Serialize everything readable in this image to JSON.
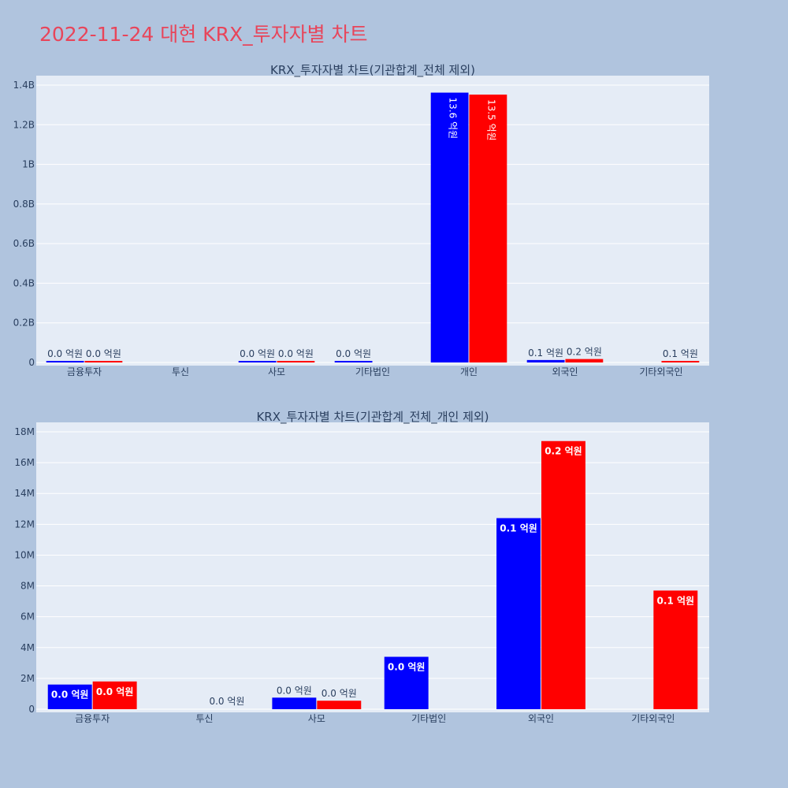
{
  "page_title": "2022-11-24 대현 KRX_투자자별 차트",
  "colors": {
    "buy": "#0000ff",
    "sell": "#ff0000",
    "title": "#e8455a",
    "page_bg": "#b0c4de",
    "plot_bg": "#e5ecf6"
  },
  "chart_data": [
    {
      "type": "bar",
      "title": "KRX_투자자별 차트(기관합계_전체 제외)",
      "categories": [
        "금융투자",
        "투신",
        "사모",
        "기타법인",
        "개인",
        "외국인",
        "기타외국인"
      ],
      "series": [
        {
          "color": "#0000ff",
          "values": [
            1600000,
            0,
            750000,
            3400000,
            1362000000,
            12400000,
            0
          ],
          "labels": [
            "0.0 억원",
            "",
            "0.0 억원",
            "0.0 억원",
            "13.6 억원",
            "0.1 억원",
            ""
          ]
        },
        {
          "color": "#ff0000",
          "values": [
            1800000,
            0,
            550000,
            0,
            1352000000,
            17400000,
            7700000
          ],
          "labels": [
            "0.0 억원",
            "",
            "0.0 억원",
            "",
            "13.5 억원",
            "0.2 억원",
            "0.1 억원"
          ]
        }
      ],
      "ylim": [
        0,
        1400000000
      ],
      "yticks": [
        0,
        200000000,
        400000000,
        600000000,
        800000000,
        1000000000,
        1200000000,
        1400000000
      ],
      "yticklabels": [
        "0",
        "0.2B",
        "0.4B",
        "0.6B",
        "0.8B",
        "1B",
        "1.2B",
        "1.4B"
      ],
      "grid": true
    },
    {
      "type": "bar",
      "title": "KRX_투자자별 차트(기관합계_전체_개인 제외)",
      "categories": [
        "금융투자",
        "투신",
        "사모",
        "기타법인",
        "외국인",
        "기타외국인"
      ],
      "series": [
        {
          "color": "#0000ff",
          "values": [
            1600000,
            0,
            750000,
            3400000,
            12400000,
            0
          ],
          "labels": [
            "0.0 억원",
            "",
            "0.0 억원",
            "0.0 억원",
            "0.1 억원",
            ""
          ]
        },
        {
          "color": "#ff0000",
          "values": [
            1800000,
            0,
            550000,
            0,
            17400000,
            7700000
          ],
          "labels": [
            "0.0 억원",
            "0.0 억원",
            "0.0 억원",
            "",
            "0.2 억원",
            "0.1 억원"
          ]
        }
      ],
      "ylim": [
        0,
        18000000
      ],
      "yticks": [
        0,
        2000000,
        4000000,
        6000000,
        8000000,
        10000000,
        12000000,
        14000000,
        16000000,
        18000000
      ],
      "yticklabels": [
        "0",
        "2M",
        "4M",
        "6M",
        "8M",
        "10M",
        "12M",
        "14M",
        "16M",
        "18M"
      ],
      "grid": true
    }
  ]
}
